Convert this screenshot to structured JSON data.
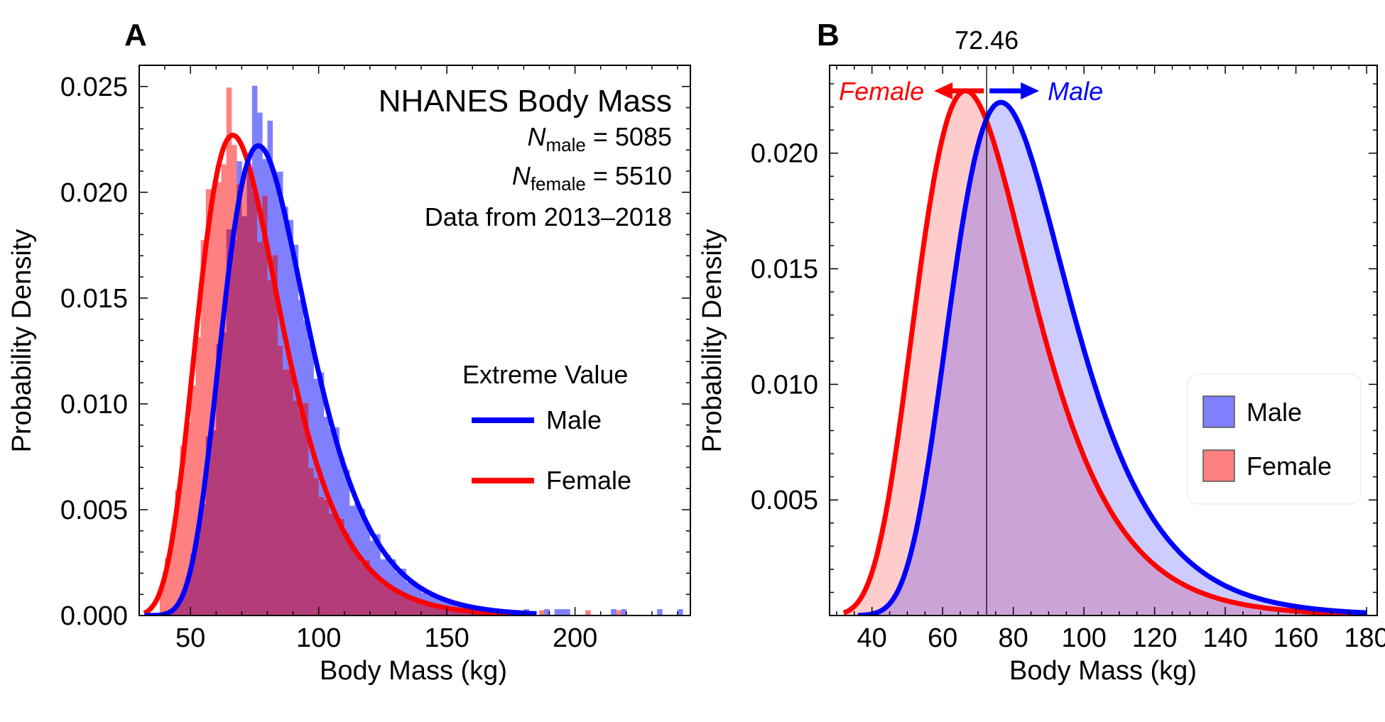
{
  "colors": {
    "male": "#0000ff",
    "female": "#ff0000",
    "male_fill": "#8080ff",
    "female_fill": "#ff8080",
    "overlap_fill": "#b43c78"
  },
  "chart_data": [
    {
      "panel": "A",
      "type": "histogram_with_fitted_curves",
      "xlabel": "Body Mass (kg)",
      "ylabel": "Probability Density",
      "xlim": [
        30,
        245
      ],
      "ylim": [
        0,
        0.026
      ],
      "x_ticks": [
        50,
        100,
        150,
        200
      ],
      "y_ticks": [
        "0.000",
        "0.005",
        "0.010",
        "0.015",
        "0.020",
        "0.025"
      ],
      "annotation": {
        "title": "NHANES Body Mass",
        "n_male_prefix": "N",
        "n_male_sub": "male",
        "n_male_value": " = 5085",
        "n_female_prefix": "N",
        "n_female_sub": "female",
        "n_female_value": " = 5510",
        "date_range": "Data from 2013–2018"
      },
      "legend": {
        "title": "Extreme Value",
        "items": [
          "Male",
          "Female"
        ],
        "position": "right"
      },
      "series": [
        {
          "name": "Male",
          "distribution": "extreme value (Gumbel)",
          "mode": 76.5,
          "scale": 16.6,
          "peak": 0.0222
        },
        {
          "name": "Female",
          "distribution": "extreme value (Gumbel)",
          "mode": 66.5,
          "scale": 16.2,
          "peak": 0.0227
        }
      ],
      "histogram": {
        "bin_width": 2,
        "male_peak": [
          76.5,
          0.0245
        ],
        "female_peak": [
          65.0,
          0.0248
        ],
        "max_observed": 242
      }
    },
    {
      "panel": "B",
      "type": "area",
      "xlabel": "Body Mass (kg)",
      "ylabel": "Probability Density",
      "xlim": [
        28,
        183
      ],
      "ylim": [
        0,
        0.0238
      ],
      "x_ticks": [
        40,
        60,
        80,
        100,
        120,
        140,
        160,
        180
      ],
      "y_ticks": [
        "0.005",
        "0.010",
        "0.015",
        "0.020"
      ],
      "crossing": {
        "x": 72.46,
        "label": "72.46"
      },
      "arrow_labels": {
        "female": "Female",
        "male": "Male"
      },
      "legend": {
        "items": [
          "Male",
          "Female"
        ],
        "position": "right"
      },
      "series": [
        {
          "name": "Male",
          "mode": 76.5,
          "scale": 16.6,
          "peak": 0.0222
        },
        {
          "name": "Female",
          "mode": 66.5,
          "scale": 16.2,
          "peak": 0.0227
        }
      ]
    }
  ]
}
